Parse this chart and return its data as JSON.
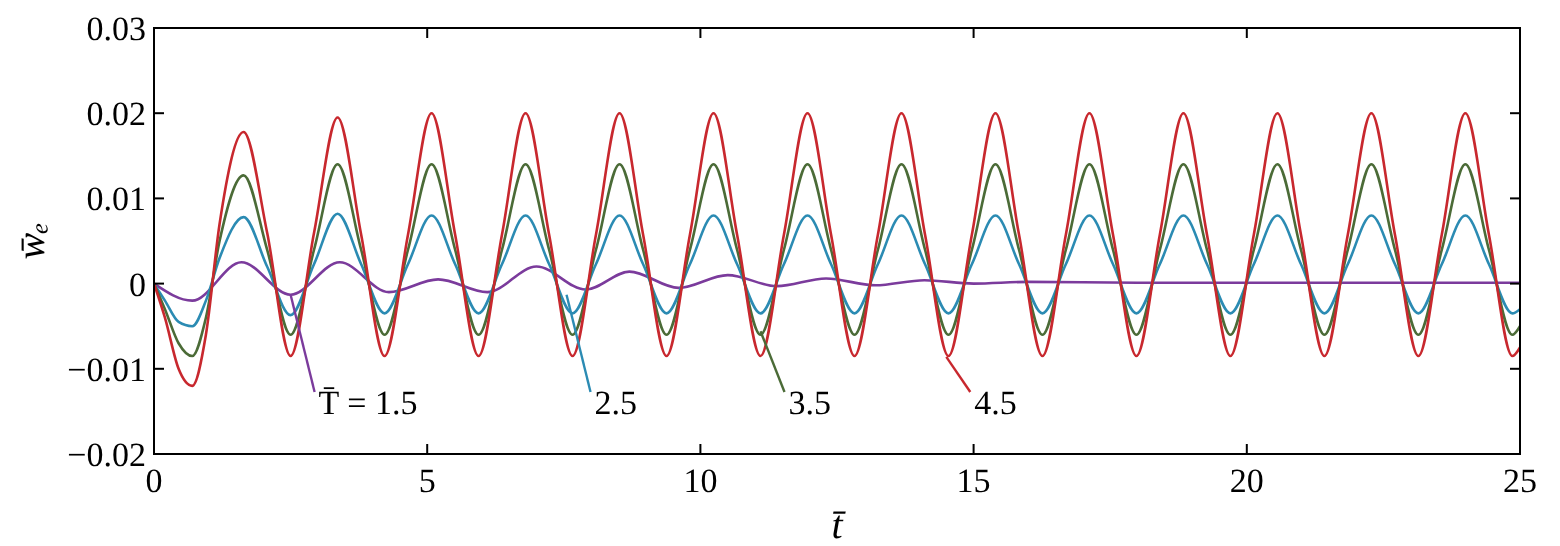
{
  "chart_data": {
    "type": "line",
    "xlabel": "t̄",
    "ylabel": "w̄ₑ",
    "x": [
      0,
      0.2,
      0.45,
      0.7,
      0.95,
      1.2,
      1.64,
      2.07,
      2.5,
      2.93,
      3.36,
      3.79,
      4.22,
      4.65,
      5.08,
      5.51,
      5.94,
      6.37,
      6.8,
      7.23,
      7.66,
      8.09,
      8.52,
      8.95,
      9.38,
      9.81,
      10.24,
      10.67,
      11.1,
      11.53,
      11.96,
      12.39,
      12.82,
      13.25,
      13.68,
      14.11,
      14.54,
      14.97,
      15.4,
      15.83,
      16.26,
      16.69,
      17.12,
      17.55,
      17.98,
      18.41,
      18.84,
      19.27,
      19.7,
      20.13,
      20.56,
      20.99,
      21.42,
      21.85,
      22.28,
      22.71,
      23.14,
      23.57,
      24,
      24.43,
      24.86,
      25
    ],
    "series": [
      {
        "color": "#7b3b9c",
        "x": [
          0,
          0.7,
          1.6,
          2.5,
          3.4,
          4.3,
          5.2,
          6.1,
          7,
          7.9,
          8.7,
          9.6,
          10.5,
          11.4,
          12.3,
          13.2,
          14.1,
          15,
          16,
          18,
          20,
          25
        ],
        "values": [
          0,
          -0.002,
          0.0025,
          -0.0013,
          0.0025,
          -0.001,
          0.0005,
          -0.001,
          0.002,
          -0.0007,
          0.0014,
          -0.0005,
          0.001,
          -0.0003,
          0.0006,
          -0.0002,
          0.0004,
          0,
          0.0002,
          0.0001,
          0.0001,
          0.0001
        ]
      },
      {
        "color": "#2b8bb3",
        "values": [
          0,
          -0.002,
          -0.0045,
          -0.005,
          -0.002,
          0.003,
          0.0078,
          0.002,
          -0.0037,
          0.0023,
          0.0082,
          0.0023,
          -0.0035,
          0.0023,
          0.008,
          0.0023,
          -0.0035,
          0.0023,
          0.008,
          0.0023,
          -0.0035,
          0.0023,
          0.008,
          0.0023,
          -0.0035,
          0.0023,
          0.008,
          0.0023,
          -0.0035,
          0.0023,
          0.008,
          0.0023,
          -0.0035,
          0.0023,
          0.008,
          0.0023,
          -0.0035,
          0.0023,
          0.008,
          0.0023,
          -0.0035,
          0.0023,
          0.008,
          0.0023,
          -0.0035,
          0.0023,
          0.008,
          0.0023,
          -0.0035,
          0.0023,
          0.008,
          0.0023,
          -0.0035,
          0.0023,
          0.008,
          0.0023,
          -0.0035,
          0.0023,
          0.008,
          0.0023,
          -0.0035,
          -0.003
        ]
      },
      {
        "color": "#4b6b37",
        "values": [
          0,
          -0.003,
          -0.007,
          -0.0085,
          -0.004,
          0.005,
          0.0127,
          0.004,
          -0.006,
          0.004,
          0.014,
          0.004,
          -0.006,
          0.004,
          0.014,
          0.004,
          -0.006,
          0.004,
          0.014,
          0.004,
          -0.006,
          0.004,
          0.014,
          0.004,
          -0.006,
          0.004,
          0.014,
          0.004,
          -0.006,
          0.004,
          0.014,
          0.004,
          -0.006,
          0.004,
          0.014,
          0.004,
          -0.006,
          0.004,
          0.014,
          0.004,
          -0.006,
          0.004,
          0.014,
          0.004,
          -0.006,
          0.004,
          0.014,
          0.004,
          -0.006,
          0.004,
          0.014,
          0.004,
          -0.006,
          0.004,
          0.014,
          0.004,
          -0.006,
          0.004,
          0.014,
          0.004,
          -0.006,
          -0.005
        ]
      },
      {
        "color": "#c8282e",
        "values": [
          0,
          -0.004,
          -0.01,
          -0.012,
          -0.006,
          0.007,
          0.0178,
          0.006,
          -0.0085,
          0.006,
          0.0195,
          0.0058,
          -0.0085,
          0.0058,
          0.02,
          0.0058,
          -0.0085,
          0.0058,
          0.02,
          0.0058,
          -0.0085,
          0.0058,
          0.02,
          0.0058,
          -0.0085,
          0.0058,
          0.02,
          0.0058,
          -0.0085,
          0.0058,
          0.02,
          0.0058,
          -0.0085,
          0.0058,
          0.02,
          0.0058,
          -0.0085,
          0.0058,
          0.02,
          0.0058,
          -0.0085,
          0.0058,
          0.02,
          0.0058,
          -0.0085,
          0.0058,
          0.02,
          0.0058,
          -0.0085,
          0.0058,
          0.02,
          0.0058,
          -0.0085,
          0.0058,
          0.02,
          0.0058,
          -0.0085,
          0.0058,
          0.02,
          0.0058,
          -0.0085,
          -0.0075
        ]
      }
    ],
    "annotations": [
      {
        "text": "T̄ = 1.5",
        "x": 2.5,
        "y": -0.0013
      },
      {
        "text": "2.5",
        "x": 7.55,
        "y": -0.0013
      },
      {
        "text": "3.5",
        "x": 11.1,
        "y": -0.0056
      },
      {
        "text": "4.5",
        "x": 14.5,
        "y": -0.0086
      }
    ],
    "xlim": [
      0,
      25
    ],
    "xticks": [
      0,
      5,
      10,
      15,
      20,
      25
    ],
    "ylim": [
      -0.02,
      0.03
    ],
    "yticks": [
      {
        "value": -0.02,
        "label": "−0.02"
      },
      {
        "value": -0.01,
        "label": "−0.01"
      },
      0,
      0.01,
      0.02,
      0.03
    ],
    "grid": false,
    "line_style": "solid",
    "marker": "none"
  }
}
